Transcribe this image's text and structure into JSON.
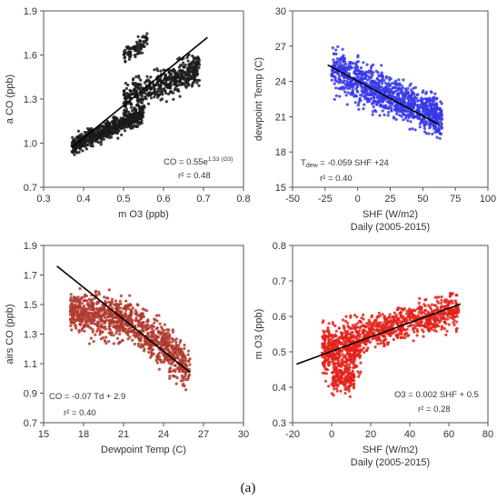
{
  "figure_caption": "(a)",
  "chart_data": [
    {
      "type": "scatter",
      "color": "#1a1a1a",
      "ylabel": "a CO (ppb)",
      "xlabel": "m O3 (ppb)",
      "xlim": [
        0.3,
        0.8
      ],
      "xticks": [
        0.3,
        0.4,
        0.5,
        0.6,
        0.7,
        0.8
      ],
      "ylim": [
        0.7,
        1.9
      ],
      "yticks": [
        0.7,
        1.0,
        1.3,
        1.6,
        1.9
      ],
      "annotations": {
        "equation": "CO = 0.55e",
        "exponent": "1.53 (O3)",
        "r2": "r² = 0.48"
      },
      "clusters": [
        {
          "x_range": [
            0.37,
            0.55
          ],
          "y_center_at_x": [
            [
              0.37,
              0.98
            ],
            [
              0.55,
              1.2
            ]
          ],
          "y_spread": 0.05,
          "n": 650
        },
        {
          "x_range": [
            0.5,
            0.69
          ],
          "y_center_at_x": [
            [
              0.5,
              1.3
            ],
            [
              0.69,
              1.5
            ]
          ],
          "y_spread": 0.09,
          "n": 500
        },
        {
          "x_range": [
            0.5,
            0.56
          ],
          "y_center_at_x": [
            [
              0.5,
              1.58
            ],
            [
              0.56,
              1.7
            ]
          ],
          "y_spread": 0.05,
          "n": 80
        }
      ],
      "trendline": {
        "x": [
          0.37,
          0.71
        ],
        "y": [
          0.97,
          1.72
        ]
      }
    },
    {
      "type": "scatter",
      "color": "#3838e8",
      "ylabel": "dewpoint Temp (C)",
      "xlabel": "SHF (W/m2)",
      "title": "Daily (2005-2015)",
      "xlim": [
        -50,
        100
      ],
      "xticks": [
        -50,
        -25,
        0,
        25,
        50,
        75,
        100
      ],
      "ylim": [
        15,
        30
      ],
      "yticks": [
        15,
        18,
        21,
        24,
        27,
        30
      ],
      "annotations": {
        "equation_prefix": "T",
        "equation_sub": "dew",
        "equation_rest": " = -0.059 SHF +24",
        "r2": "r² = 0.40"
      },
      "clusters": [
        {
          "x_range": [
            -20,
            65
          ],
          "y_center_at_x": [
            [
              -20,
              25.0
            ],
            [
              65,
              20.8
            ]
          ],
          "y_spread": 1.4,
          "n": 1100
        }
      ],
      "trendline": {
        "x": [
          -23,
          63
        ],
        "y": [
          25.4,
          20.3
        ]
      }
    },
    {
      "type": "scatter",
      "color": "#b03a2e",
      "ylabel": "airs CO (ppb)",
      "xlabel": "Dewpoint Temp (C)",
      "xlim": [
        15,
        30
      ],
      "xticks": [
        15,
        18,
        21,
        24,
        27,
        30
      ],
      "ylim": [
        0.7,
        1.9
      ],
      "yticks": [
        0.7,
        0.9,
        1.1,
        1.3,
        1.5,
        1.7,
        1.9
      ],
      "annotations": {
        "equation": "CO = -0.07 Td + 2.9",
        "r2": "r² = 0.40"
      },
      "clusters": [
        {
          "x_range": [
            17,
            26
          ],
          "y_center_at_x": [
            [
              17,
              1.45
            ],
            [
              21,
              1.4
            ],
            [
              24,
              1.22
            ],
            [
              26,
              1.05
            ]
          ],
          "y_spread": 0.12,
          "n": 1100
        }
      ],
      "trendline": {
        "x": [
          16,
          26
        ],
        "y": [
          1.76,
          1.04
        ]
      }
    },
    {
      "type": "scatter",
      "color": "#e3231b",
      "ylabel": "m O3 (ppb)",
      "xlabel": "SHF (W/m2)",
      "title": "Daily (2005-2015)",
      "xlim": [
        -20,
        80
      ],
      "xticks": [
        -20,
        0,
        20,
        40,
        60,
        80
      ],
      "ylim": [
        0.3,
        0.8
      ],
      "yticks": [
        0.3,
        0.4,
        0.5,
        0.6,
        0.7,
        0.8
      ],
      "annotations": {
        "equation": "O3 = 0.002 SHF + 0.5",
        "r2": "r² = 0.28"
      },
      "clusters": [
        {
          "x_range": [
            -5,
            15
          ],
          "y_center_at_x": [
            [
              -5,
              0.5
            ],
            [
              15,
              0.52
            ]
          ],
          "y_spread": 0.06,
          "n": 500
        },
        {
          "x_range": [
            15,
            65
          ],
          "y_center_at_x": [
            [
              15,
              0.55
            ],
            [
              65,
              0.62
            ]
          ],
          "y_spread": 0.04,
          "n": 650
        },
        {
          "x_range": [
            0,
            12
          ],
          "y_center_at_x": [
            [
              0,
              0.42
            ],
            [
              12,
              0.43
            ]
          ],
          "y_spread": 0.03,
          "n": 150
        }
      ],
      "trendline": {
        "x": [
          -18,
          66
        ],
        "y": [
          0.465,
          0.635
        ]
      }
    }
  ]
}
